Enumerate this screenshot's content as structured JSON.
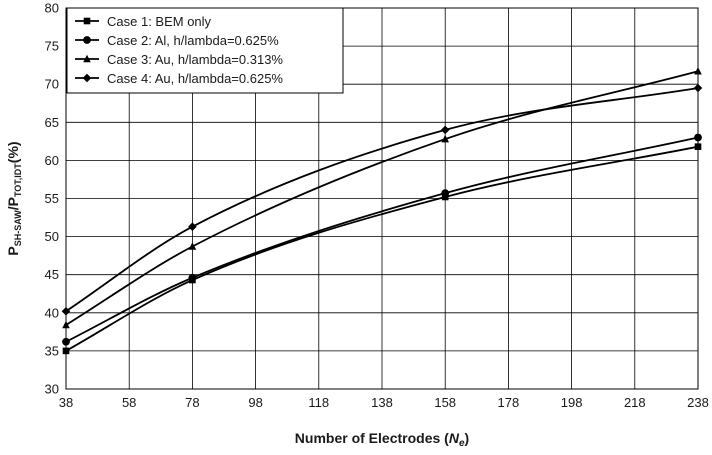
{
  "chart_data": {
    "type": "line",
    "xlabel_parts": [
      "Number of Electrodes (",
      "N",
      "e",
      ")"
    ],
    "ylabel_parts": [
      "P",
      "SH-SAW",
      "/P",
      "TOT,IDT",
      "(%)"
    ],
    "x_ticks": [
      38,
      58,
      78,
      98,
      118,
      138,
      158,
      178,
      198,
      218,
      238
    ],
    "y_ticks": [
      30,
      35,
      40,
      45,
      50,
      55,
      60,
      65,
      70,
      75,
      80
    ],
    "xlim": [
      38,
      238
    ],
    "ylim": [
      30,
      80
    ],
    "grid": true,
    "legend_position": "top-left",
    "x": [
      38,
      78,
      158,
      238
    ],
    "series": [
      {
        "name": "Case 1: BEM only",
        "marker": "square",
        "values": [
          35.0,
          44.3,
          55.2,
          61.8
        ]
      },
      {
        "name": "Case 2: Al, h/lambda=0.625%",
        "marker": "circle",
        "values": [
          36.2,
          44.6,
          55.7,
          63.0
        ]
      },
      {
        "name": "Case 3: Au, h/lambda=0.313%",
        "marker": "triangle",
        "values": [
          38.4,
          48.7,
          62.8,
          71.7
        ]
      },
      {
        "name": "Case 4: Au, h/lambda=0.625%",
        "marker": "diamond",
        "values": [
          40.2,
          51.3,
          64.0,
          69.5
        ]
      }
    ]
  }
}
